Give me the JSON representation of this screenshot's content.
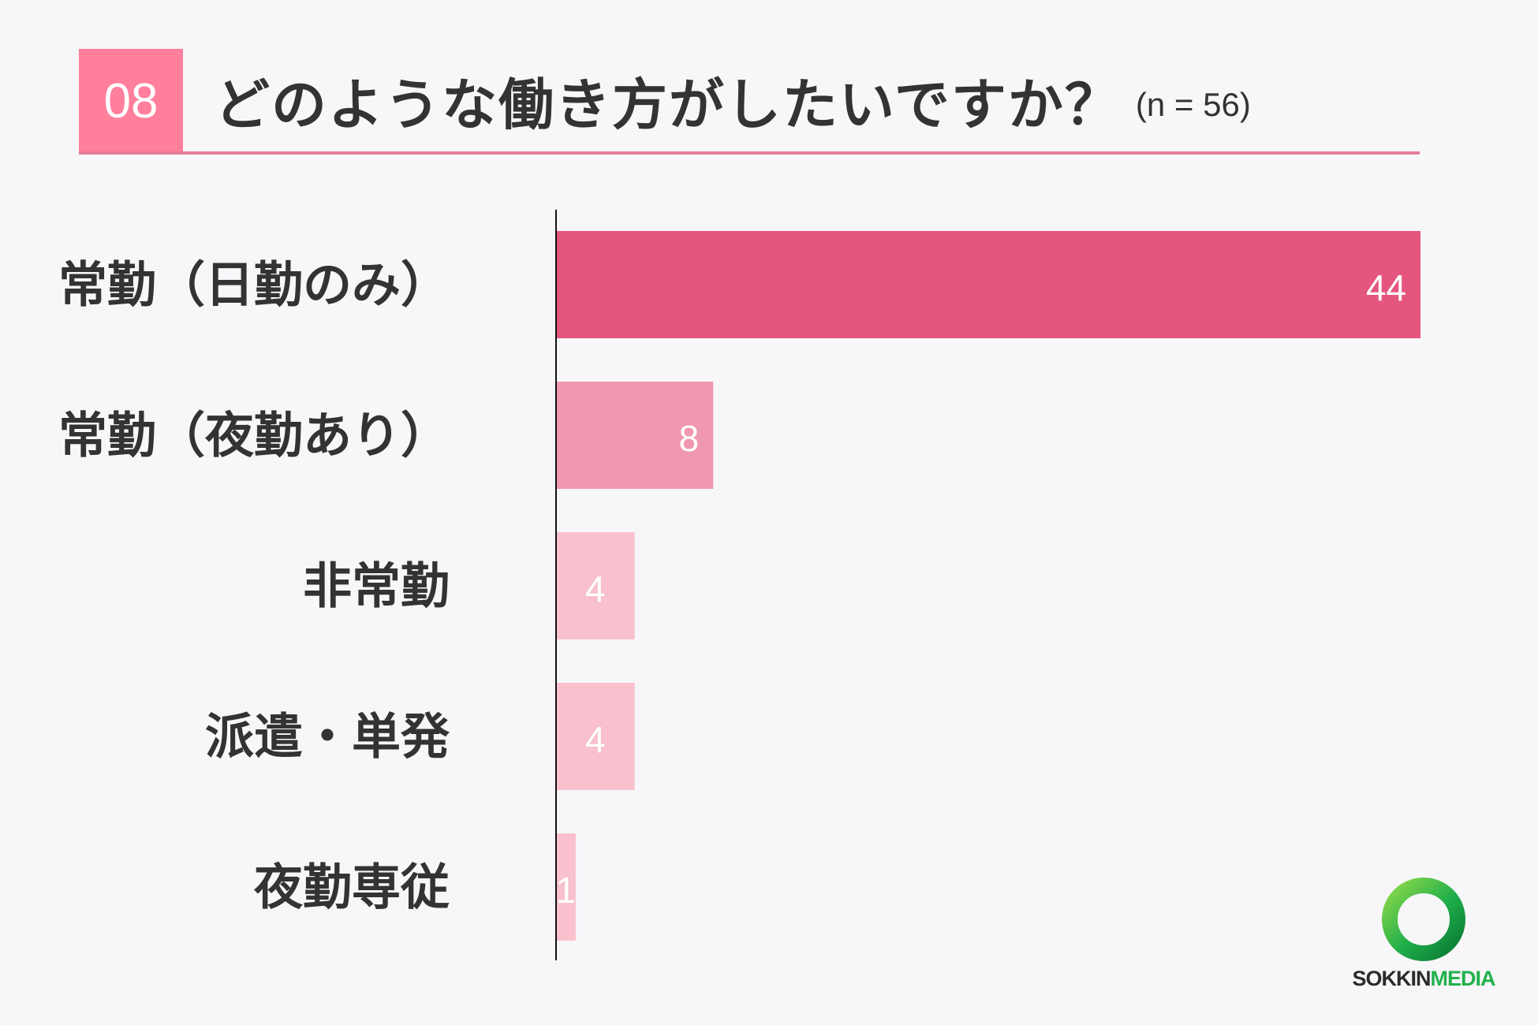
{
  "header": {
    "question_number": "08",
    "title": "どのような働き方がしたいですか？",
    "sample_size": "(n = 56)"
  },
  "chart_data": {
    "type": "bar",
    "orientation": "horizontal",
    "categories": [
      "常勤（日勤のみ）",
      "常勤（夜勤あり）",
      "非常勤",
      "派遣・単発",
      "夜勤専従"
    ],
    "values": [
      44,
      8,
      4,
      4,
      1
    ],
    "title": "どのような働き方がしたいですか？",
    "xlabel": "",
    "ylabel": "",
    "xlim": [
      0,
      44
    ],
    "grid": false,
    "legend": "none",
    "colors": [
      "#e5567e",
      "#f098b0",
      "#f8c1cd",
      "#f8c1cd",
      "#f8c1cd"
    ]
  },
  "logo": {
    "text_dark": "SOKKIN",
    "text_green": "MEDIA",
    "colors": {
      "ring": "#1fae4a",
      "dark": "#2b2b2b"
    }
  }
}
